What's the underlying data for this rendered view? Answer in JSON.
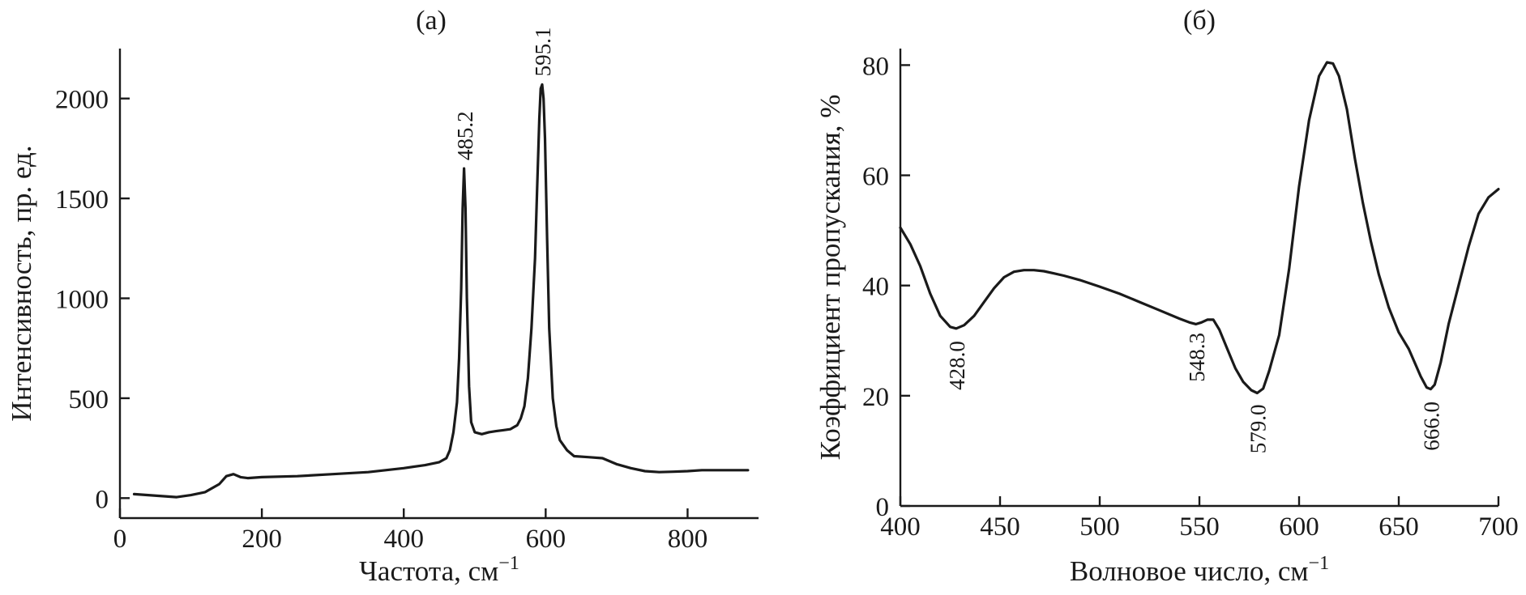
{
  "chart_data": [
    {
      "type": "line",
      "panel_label": "(a)",
      "xlabel": "Частота, см",
      "xlabel_sup": "−1",
      "ylabel": "Интенсивность, пр. ед.",
      "xlim": [
        0,
        900
      ],
      "ylim": [
        -100,
        2250
      ],
      "xticks": [
        0,
        200,
        400,
        600,
        800
      ],
      "xtick_labels": [
        "0",
        "200",
        "400",
        "600",
        "800"
      ],
      "yticks": [
        0,
        500,
        1000,
        1500,
        2000
      ],
      "ytick_labels": [
        "0",
        "500",
        "1000",
        "1500",
        "2000"
      ],
      "grid": false,
      "annotations": [
        {
          "x": 485.2,
          "y": 1650,
          "text": "485.2"
        },
        {
          "x": 595.1,
          "y": 2070,
          "text": "595.1"
        }
      ],
      "series": [
        {
          "x": [
            20,
            40,
            60,
            80,
            100,
            120,
            140,
            150,
            160,
            170,
            180,
            200,
            250,
            300,
            350,
            400,
            430,
            450,
            460,
            465,
            470,
            475,
            478,
            481,
            483,
            485,
            487,
            489,
            492,
            495,
            500,
            510,
            520,
            530,
            540,
            550,
            560,
            565,
            570,
            575,
            580,
            585,
            588,
            591,
            593,
            595,
            597,
            599,
            602,
            605,
            610,
            615,
            620,
            630,
            640,
            660,
            680,
            700,
            720,
            740,
            760,
            780,
            800,
            820,
            840,
            860,
            885
          ],
          "y": [
            20,
            15,
            10,
            5,
            15,
            30,
            70,
            110,
            120,
            105,
            100,
            105,
            110,
            120,
            130,
            150,
            165,
            180,
            200,
            240,
            330,
            480,
            700,
            1050,
            1450,
            1650,
            1450,
            1000,
            560,
            380,
            330,
            320,
            330,
            335,
            340,
            345,
            365,
            400,
            460,
            600,
            850,
            1200,
            1550,
            1900,
            2050,
            2070,
            2000,
            1800,
            1300,
            850,
            500,
            360,
            290,
            240,
            210,
            205,
            200,
            170,
            150,
            135,
            130,
            132,
            135,
            140,
            140,
            140,
            140
          ]
        }
      ]
    },
    {
      "type": "line",
      "panel_label": "(б)",
      "xlabel": "Волновое число, см",
      "xlabel_sup": "−1",
      "ylabel": "Коэффициент пропускания, %",
      "xlim": [
        400,
        700
      ],
      "ylim": [
        0,
        83
      ],
      "xticks": [
        400,
        450,
        500,
        550,
        600,
        650,
        700
      ],
      "xtick_labels": [
        "400",
        "450",
        "500",
        "550",
        "600",
        "650",
        "700"
      ],
      "yticks": [
        0,
        20,
        40,
        60,
        80
      ],
      "ytick_labels": [
        "0",
        "20",
        "40",
        "60",
        "80"
      ],
      "grid": false,
      "annotations": [
        {
          "x": 428.0,
          "y": 32,
          "text": "428.0"
        },
        {
          "x": 548.3,
          "y": 33.5,
          "text": "548.3"
        },
        {
          "x": 579.0,
          "y": 20.5,
          "text": "579.0"
        },
        {
          "x": 666.0,
          "y": 21,
          "text": "666.0"
        }
      ],
      "series": [
        {
          "x": [
            400,
            405,
            410,
            415,
            420,
            425,
            428,
            432,
            437,
            442,
            447,
            452,
            457,
            462,
            467,
            472,
            477,
            482,
            490,
            500,
            510,
            520,
            530,
            540,
            545,
            548.3,
            551,
            554,
            557,
            560,
            564,
            568,
            572,
            576,
            579,
            582,
            585,
            590,
            595,
            600,
            605,
            610,
            614,
            617,
            620,
            624,
            628,
            632,
            636,
            640,
            645,
            650,
            655,
            658,
            661,
            664,
            666,
            668,
            671,
            675,
            680,
            685,
            690,
            695,
            700
          ],
          "y": [
            50.5,
            47.5,
            43.5,
            38.5,
            34.5,
            32.5,
            32.2,
            32.8,
            34.5,
            37,
            39.5,
            41.5,
            42.5,
            42.8,
            42.8,
            42.6,
            42.2,
            41.8,
            41,
            39.8,
            38.5,
            37,
            35.5,
            34,
            33.3,
            33,
            33.3,
            33.8,
            33.8,
            32,
            28.5,
            25,
            22.5,
            21,
            20.5,
            21.3,
            24.5,
            31,
            43,
            58,
            70,
            78,
            80.5,
            80.3,
            78,
            72,
            63,
            55,
            48,
            42,
            36,
            31.5,
            28.5,
            26,
            23.5,
            21.5,
            21.2,
            22,
            26,
            33,
            40,
            47,
            53,
            56,
            57.5
          ]
        }
      ]
    }
  ]
}
